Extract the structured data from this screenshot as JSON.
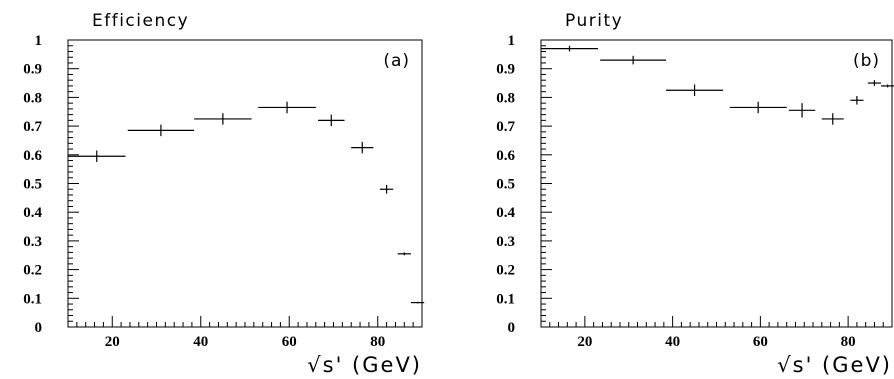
{
  "chart_data": [
    {
      "type": "scatter",
      "title": "Efficiency",
      "panel_label": "(a)",
      "xlabel": "√s'  (GeV)",
      "ylabel": "",
      "xlim": [
        10,
        90
      ],
      "ylim": [
        0,
        1
      ],
      "x_ticks": [
        "20",
        "40",
        "60",
        "80"
      ],
      "y_ticks": [
        "0",
        "0.1",
        "0.2",
        "0.3",
        "0.4",
        "0.5",
        "0.6",
        "0.7",
        "0.8",
        "0.9",
        "1"
      ],
      "grid": false,
      "series": [
        {
          "points": [
            {
              "x": 16.5,
              "y": 0.595,
              "xerr": 6.5,
              "yerr": 0.02
            },
            {
              "x": 31.0,
              "y": 0.685,
              "xerr": 7.5,
              "yerr": 0.02
            },
            {
              "x": 45.0,
              "y": 0.725,
              "xerr": 6.5,
              "yerr": 0.02
            },
            {
              "x": 59.5,
              "y": 0.765,
              "xerr": 6.5,
              "yerr": 0.02
            },
            {
              "x": 69.5,
              "y": 0.72,
              "xerr": 3.0,
              "yerr": 0.02
            },
            {
              "x": 76.5,
              "y": 0.625,
              "xerr": 2.5,
              "yerr": 0.02
            },
            {
              "x": 82.0,
              "y": 0.48,
              "xerr": 1.5,
              "yerr": 0.015
            },
            {
              "x": 86.0,
              "y": 0.255,
              "xerr": 1.5,
              "yerr": 0.005
            },
            {
              "x": 89.0,
              "y": 0.085,
              "xerr": 1.5,
              "yerr": 0.003
            }
          ]
        }
      ]
    },
    {
      "type": "scatter",
      "title": "Purity",
      "panel_label": "(b)",
      "xlabel": "√s'  (GeV)",
      "ylabel": "",
      "xlim": [
        10,
        90
      ],
      "ylim": [
        0,
        1
      ],
      "x_ticks": [
        "20",
        "40",
        "60",
        "80"
      ],
      "y_ticks": [
        "0",
        "0.1",
        "0.2",
        "0.3",
        "0.4",
        "0.5",
        "0.6",
        "0.7",
        "0.8",
        "0.9",
        "1"
      ],
      "grid": false,
      "series": [
        {
          "points": [
            {
              "x": 16.5,
              "y": 0.97,
              "xerr": 6.5,
              "yerr": 0.01
            },
            {
              "x": 31.0,
              "y": 0.93,
              "xerr": 7.5,
              "yerr": 0.015
            },
            {
              "x": 45.0,
              "y": 0.825,
              "xerr": 6.5,
              "yerr": 0.02
            },
            {
              "x": 59.5,
              "y": 0.765,
              "xerr": 6.5,
              "yerr": 0.02
            },
            {
              "x": 69.5,
              "y": 0.755,
              "xerr": 3.0,
              "yerr": 0.025
            },
            {
              "x": 76.5,
              "y": 0.725,
              "xerr": 2.5,
              "yerr": 0.02
            },
            {
              "x": 82.0,
              "y": 0.79,
              "xerr": 1.5,
              "yerr": 0.015
            },
            {
              "x": 86.0,
              "y": 0.85,
              "xerr": 1.5,
              "yerr": 0.01
            },
            {
              "x": 89.0,
              "y": 0.84,
              "xerr": 1.5,
              "yerr": 0.005
            }
          ]
        }
      ]
    }
  ]
}
